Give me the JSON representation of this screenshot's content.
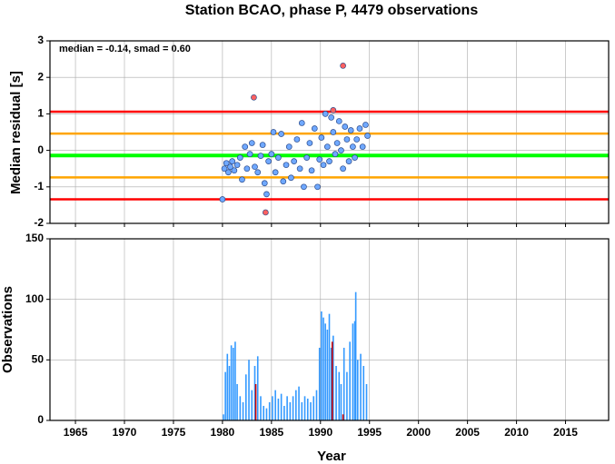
{
  "chart_data": [
    {
      "type": "scatter",
      "title": "Station BCAO, phase P, 4479 observations",
      "ylabel": "Median residual [s]",
      "annotation": "median = -0.14, smad = 0.60",
      "xlim": [
        1962.4,
        2019.4
      ],
      "xticks": [
        1965,
        1970,
        1975,
        1980,
        1985,
        1990,
        1995,
        2000,
        2005,
        2010,
        2015
      ],
      "ylim": [
        -2,
        3
      ],
      "yticks": [
        -2,
        -1,
        0,
        1,
        2,
        3
      ],
      "grid": true,
      "hlines": [
        {
          "value": 1.06,
          "color": "#ff0000"
        },
        {
          "value": -1.34,
          "color": "#ff0000"
        },
        {
          "value": 0.46,
          "color": "#ffa500"
        },
        {
          "value": -0.74,
          "color": "#ffa500"
        },
        {
          "value": -0.14,
          "color": "#00ff00"
        }
      ],
      "series": [
        {
          "color": "#6fa8ff",
          "x": [
            1980.0,
            1980.2,
            1980.4,
            1980.6,
            1980.8,
            1981,
            1981.2,
            1981.5,
            1981.8,
            1982,
            1982.3,
            1982.5,
            1982.8,
            1983,
            1983.3,
            1983.6,
            1983.9,
            1984.1,
            1984.3,
            1984.5,
            1984.7,
            1985,
            1985.2,
            1985.4,
            1985.7,
            1986,
            1986.2,
            1986.5,
            1986.8,
            1987,
            1987.3,
            1987.6,
            1987.9,
            1988.1,
            1988.3,
            1988.6,
            1988.9,
            1989.1,
            1989.4,
            1989.7,
            1989.9,
            1990.1,
            1990.3,
            1990.5,
            1990.7,
            1990.9,
            1991.1,
            1991.3,
            1991.5,
            1991.7,
            1991.9,
            1992.1,
            1992.3,
            1992.5,
            1992.7,
            1992.9,
            1993.1,
            1993.3,
            1993.5,
            1993.7,
            1994,
            1994.3,
            1994.6,
            1994.8
          ],
          "values": [
            -1.34,
            -0.5,
            -0.35,
            -0.6,
            -0.45,
            -0.3,
            -0.55,
            -0.4,
            -0.2,
            -0.8,
            0.1,
            -0.5,
            -0.1,
            0.2,
            -0.45,
            -0.6,
            -0.15,
            0.15,
            -0.9,
            -1.2,
            -0.3,
            -0.1,
            0.5,
            -0.6,
            -0.2,
            0.45,
            -0.85,
            -0.4,
            0.1,
            -0.75,
            -0.3,
            0.3,
            -0.5,
            0.75,
            -1.0,
            -0.2,
            0.2,
            -0.55,
            0.6,
            -1.0,
            -0.25,
            0.35,
            -0.4,
            1.0,
            0.1,
            -0.3,
            0.9,
            0.5,
            -0.1,
            0.2,
            0.8,
            0.0,
            -0.5,
            0.65,
            0.3,
            -0.3,
            0.55,
            0.1,
            -0.2,
            0.3,
            0.6,
            0.1,
            0.7,
            0.4
          ]
        },
        {
          "color": "#ff6060",
          "x": [
            1983.2,
            1984.4,
            1991.3,
            1992.3
          ],
          "values": [
            1.45,
            -1.7,
            1.1,
            2.32
          ]
        }
      ]
    },
    {
      "type": "bar",
      "xlabel": "Year",
      "ylabel": "Observations",
      "xlim": [
        1962.4,
        2019.4
      ],
      "xticks": [
        1965,
        1970,
        1975,
        1980,
        1985,
        1990,
        1995,
        2000,
        2005,
        2010,
        2015
      ],
      "ylim": [
        0,
        150
      ],
      "yticks": [
        0,
        50,
        100,
        150
      ],
      "grid": true,
      "series": [
        {
          "color": "#3399ff",
          "x": [
            1980.1,
            1980.3,
            1980.5,
            1980.7,
            1980.9,
            1981.1,
            1981.3,
            1981.5,
            1981.8,
            1982.1,
            1982.4,
            1982.7,
            1983.0,
            1983.3,
            1983.6,
            1983.9,
            1984.2,
            1984.5,
            1984.8,
            1985.1,
            1985.4,
            1985.7,
            1986.0,
            1986.3,
            1986.6,
            1986.9,
            1987.2,
            1987.5,
            1987.8,
            1988.1,
            1988.4,
            1988.7,
            1989.0,
            1989.3,
            1989.6,
            1989.9,
            1990.1,
            1990.3,
            1990.5,
            1990.7,
            1990.9,
            1991.1,
            1991.3,
            1991.6,
            1991.9,
            1992.1,
            1992.4,
            1992.7,
            1993.0,
            1993.3,
            1993.5,
            1993.6,
            1993.8,
            1994.1,
            1994.4,
            1994.7
          ],
          "values": [
            5,
            40,
            55,
            45,
            62,
            60,
            65,
            30,
            20,
            15,
            38,
            50,
            25,
            45,
            53,
            20,
            12,
            10,
            15,
            20,
            25,
            18,
            22,
            12,
            20,
            15,
            20,
            25,
            28,
            15,
            20,
            18,
            15,
            20,
            25,
            60,
            90,
            85,
            80,
            75,
            88,
            60,
            70,
            45,
            40,
            30,
            60,
            40,
            65,
            80,
            82,
            106,
            50,
            55,
            45,
            30
          ]
        },
        {
          "color": "#cc0000",
          "x": [
            1983.4,
            1991.2,
            1992.3
          ],
          "values": [
            30,
            65,
            5
          ]
        }
      ]
    }
  ]
}
